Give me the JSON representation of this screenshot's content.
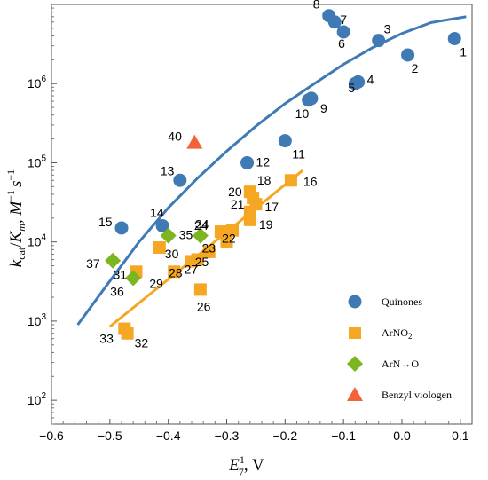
{
  "chart_data": {
    "type": "scatter",
    "x_axis": {
      "label_main": "E",
      "label_sup": "1",
      "label_sub": "7",
      "label_unit": ", V",
      "range": [
        -0.6,
        0.12
      ],
      "ticks": [
        -0.6,
        -0.5,
        -0.4,
        -0.3,
        -0.2,
        -0.1,
        0.0,
        0.1
      ],
      "tick_labels": [
        "−0.6",
        "−0.5",
        "−0.4",
        "−0.3",
        "−0.2",
        "−0.1",
        "0.0",
        "0.1"
      ]
    },
    "y_axis": {
      "label": "kcat/Km, M−1 s−1",
      "label_k": "k",
      "label_k_sub": "cat",
      "label_slash": "/",
      "label_K": "K",
      "label_K_sub": "m",
      "label_comma": ", ",
      "label_M": "M",
      "label_M_sup": "−1",
      "label_s": "s",
      "label_s_sup": "−1",
      "scale": "log",
      "range": [
        50,
        10000000
      ],
      "ticks": [
        100,
        1000,
        10000,
        100000,
        1000000
      ],
      "tick_base": "10",
      "tick_exponents": [
        "2",
        "3",
        "4",
        "5",
        "6"
      ]
    },
    "grid": false,
    "legend_position": "bottom-right",
    "series": [
      {
        "name": "Quinones",
        "marker": "circle",
        "color": "#3f7ab5",
        "points": [
          {
            "id": "1",
            "x": 0.09,
            "y": 3700000
          },
          {
            "id": "2",
            "x": 0.01,
            "y": 2300000
          },
          {
            "id": "3",
            "x": -0.04,
            "y": 3500000
          },
          {
            "id": "4",
            "x": -0.075,
            "y": 1050000
          },
          {
            "id": "5",
            "x": -0.08,
            "y": 1000000
          },
          {
            "id": "6",
            "x": -0.1,
            "y": 4500000
          },
          {
            "id": "7",
            "x": -0.115,
            "y": 6000000
          },
          {
            "id": "8",
            "x": -0.125,
            "y": 7200000
          },
          {
            "id": "9",
            "x": -0.155,
            "y": 650000
          },
          {
            "id": "10",
            "x": -0.16,
            "y": 620000
          },
          {
            "id": "11",
            "x": -0.2,
            "y": 190000
          },
          {
            "id": "12",
            "x": -0.265,
            "y": 100000
          },
          {
            "id": "13",
            "x": -0.38,
            "y": 60000
          },
          {
            "id": "14",
            "x": -0.41,
            "y": 16000
          },
          {
            "id": "15",
            "x": -0.48,
            "y": 15000
          }
        ]
      },
      {
        "name": "ArNO2",
        "marker": "square",
        "color": "#f5a623",
        "points": [
          {
            "id": "16",
            "x": -0.19,
            "y": 60000
          },
          {
            "id": "17",
            "x": -0.25,
            "y": 30000
          },
          {
            "id": "18",
            "x": -0.26,
            "y": 43000
          },
          {
            "id": "19",
            "x": -0.26,
            "y": 19000
          },
          {
            "id": "20",
            "x": -0.255,
            "y": 36000
          },
          {
            "id": "21",
            "x": -0.26,
            "y": 24000
          },
          {
            "id": "22",
            "x": -0.29,
            "y": 14000
          },
          {
            "id": "23",
            "x": -0.3,
            "y": 10000
          },
          {
            "id": "24",
            "x": -0.31,
            "y": 13500
          },
          {
            "id": "25",
            "x": -0.33,
            "y": 7500
          },
          {
            "id": "26",
            "x": -0.345,
            "y": 2500
          },
          {
            "id": "27",
            "x": -0.35,
            "y": 6000
          },
          {
            "id": "28",
            "x": -0.36,
            "y": 5700
          },
          {
            "id": "29",
            "x": -0.39,
            "y": 4200
          },
          {
            "id": "30",
            "x": -0.415,
            "y": 8500
          },
          {
            "id": "31",
            "x": -0.455,
            "y": 4200
          },
          {
            "id": "32",
            "x": -0.47,
            "y": 700
          },
          {
            "id": "33",
            "x": -0.475,
            "y": 800
          }
        ]
      },
      {
        "name": "ArN→O",
        "marker": "diamond",
        "color": "#7db521",
        "points": [
          {
            "id": "34",
            "x": -0.345,
            "y": 12000
          },
          {
            "id": "35",
            "x": -0.4,
            "y": 12000
          },
          {
            "id": "36",
            "x": -0.46,
            "y": 3500
          },
          {
            "id": "37",
            "x": -0.495,
            "y": 5800
          }
        ]
      },
      {
        "name": "Benzyl viologen",
        "marker": "triangle",
        "color": "#f4623a",
        "points": [
          {
            "id": "40",
            "x": -0.355,
            "y": 180000
          }
        ]
      }
    ],
    "fit_lines": [
      {
        "series": "Quinones",
        "color": "#3f7ab5",
        "points": [
          [
            -0.555,
            900
          ],
          [
            -0.5,
            3200
          ],
          [
            -0.45,
            10000
          ],
          [
            -0.4,
            27000
          ],
          [
            -0.35,
            64000
          ],
          [
            -0.3,
            140000
          ],
          [
            -0.25,
            290000
          ],
          [
            -0.2,
            560000
          ],
          [
            -0.15,
            1000000
          ],
          [
            -0.1,
            1750000
          ],
          [
            -0.05,
            2850000
          ],
          [
            0.0,
            4300000
          ],
          [
            0.05,
            5900000
          ],
          [
            0.11,
            7000000
          ]
        ]
      },
      {
        "series": "ArNO2",
        "color": "#f5a623",
        "points": [
          [
            -0.5,
            850
          ],
          [
            -0.17,
            80000
          ]
        ]
      }
    ]
  }
}
